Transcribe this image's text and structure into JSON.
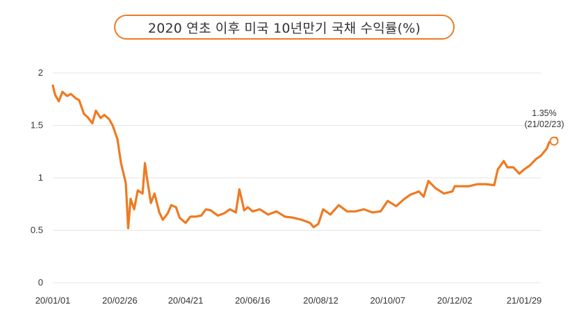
{
  "chart_data": {
    "type": "line",
    "title": "2020 연초 이후 미국 10년만기 국채 수익률(%)",
    "xlabel": "",
    "ylabel": "",
    "ylim": [
      0,
      2
    ],
    "yticks": [
      "0",
      "0.5",
      "1",
      "1.5",
      "2"
    ],
    "xticks": [
      "20/01/01",
      "20/02/26",
      "20/04/21",
      "20/06/16",
      "20/08/12",
      "20/10/07",
      "20/12/02",
      "21/01/29"
    ],
    "grid": true,
    "legend": "none",
    "color": "#ee7a21",
    "annotation": {
      "value_label": "1.35%",
      "date_label": "(21/02/23)",
      "x": "21/02/23",
      "y": 1.35
    },
    "series": [
      {
        "x": [
          "20/01/01",
          "20/01/03",
          "20/01/06",
          "20/01/09",
          "20/01/13",
          "20/01/16",
          "20/01/20",
          "20/01/23",
          "20/01/27",
          "20/01/30",
          "20/02/03",
          "20/02/06",
          "20/02/10",
          "20/02/13",
          "20/02/17",
          "20/02/20",
          "20/02/24",
          "20/02/27",
          "20/03/02",
          "20/03/04",
          "20/03/06",
          "20/03/09",
          "20/03/12",
          "20/03/16",
          "20/03/18",
          "20/03/20",
          "20/03/23",
          "20/03/26",
          "20/03/30",
          "20/04/02",
          "20/04/06",
          "20/04/09",
          "20/04/13",
          "20/04/16",
          "20/04/21",
          "20/04/25",
          "20/04/29",
          "20/05/04",
          "20/05/08",
          "20/05/12",
          "20/05/18",
          "20/05/23",
          "20/05/28",
          "20/06/02",
          "20/06/05",
          "20/06/09",
          "20/06/12",
          "20/06/16",
          "20/06/22",
          "20/06/29",
          "20/07/06",
          "20/07/13",
          "20/07/20",
          "20/07/27",
          "20/08/03",
          "20/08/06",
          "20/08/10",
          "20/08/14",
          "20/08/20",
          "20/08/27",
          "20/09/03",
          "20/09/10",
          "20/09/17",
          "20/09/24",
          "20/10/01",
          "20/10/07",
          "20/10/14",
          "20/10/21",
          "20/10/26",
          "20/11/02",
          "20/11/06",
          "20/11/10",
          "20/11/16",
          "20/11/23",
          "20/11/30",
          "20/12/02",
          "20/12/07",
          "20/12/14",
          "20/12/21",
          "20/12/28",
          "21/01/04",
          "21/01/07",
          "21/01/12",
          "21/01/15",
          "21/01/20",
          "21/01/25",
          "21/01/29",
          "21/02/03",
          "21/02/08",
          "21/02/12",
          "21/02/17",
          "21/02/19",
          "21/02/23",
          "21/02/25"
        ],
        "values": [
          1.88,
          1.79,
          1.73,
          1.82,
          1.78,
          1.8,
          1.76,
          1.74,
          1.61,
          1.58,
          1.52,
          1.64,
          1.57,
          1.6,
          1.56,
          1.5,
          1.37,
          1.14,
          0.95,
          0.52,
          0.8,
          0.7,
          0.88,
          0.85,
          1.14,
          0.98,
          0.76,
          0.85,
          0.67,
          0.6,
          0.66,
          0.74,
          0.72,
          0.62,
          0.57,
          0.63,
          0.63,
          0.64,
          0.7,
          0.69,
          0.64,
          0.66,
          0.7,
          0.67,
          0.89,
          0.69,
          0.72,
          0.68,
          0.7,
          0.65,
          0.68,
          0.63,
          0.62,
          0.6,
          0.57,
          0.53,
          0.56,
          0.7,
          0.65,
          0.74,
          0.68,
          0.68,
          0.7,
          0.67,
          0.68,
          0.78,
          0.73,
          0.8,
          0.84,
          0.87,
          0.82,
          0.97,
          0.9,
          0.85,
          0.87,
          0.92,
          0.92,
          0.92,
          0.94,
          0.94,
          0.93,
          1.08,
          1.16,
          1.1,
          1.1,
          1.04,
          1.08,
          1.12,
          1.18,
          1.21,
          1.28,
          1.34,
          1.35,
          1.38
        ]
      }
    ]
  }
}
